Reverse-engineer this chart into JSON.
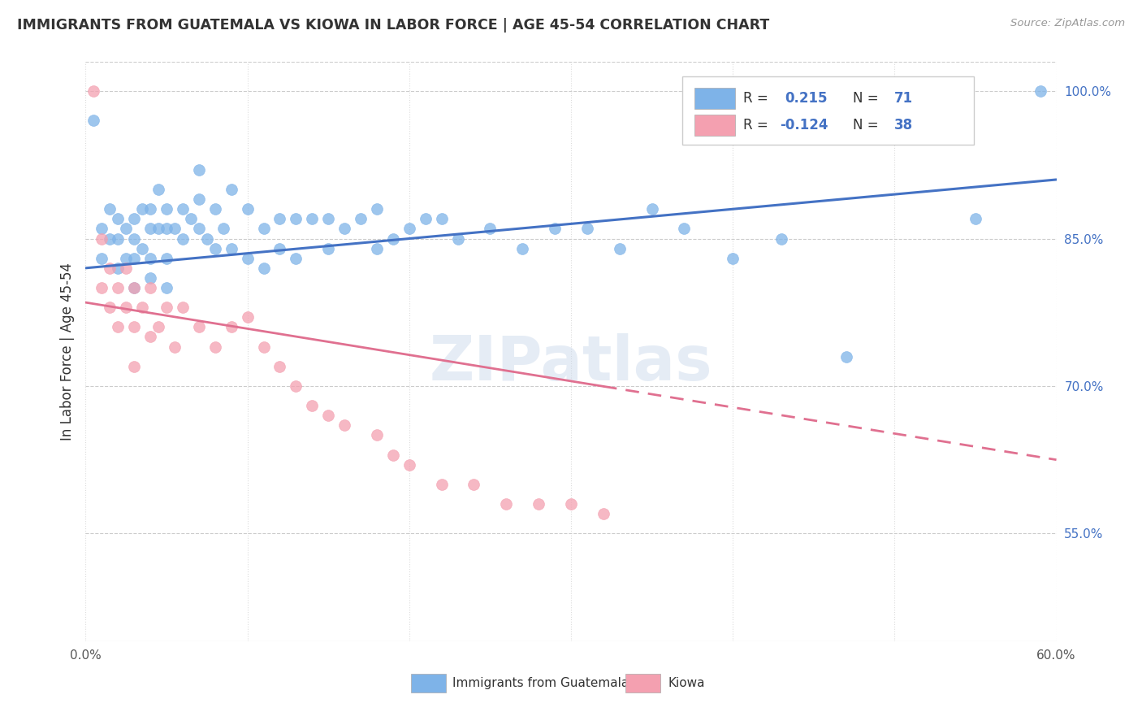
{
  "title": "IMMIGRANTS FROM GUATEMALA VS KIOWA IN LABOR FORCE | AGE 45-54 CORRELATION CHART",
  "source": "Source: ZipAtlas.com",
  "ylabel": "In Labor Force | Age 45-54",
  "x_min": 0.0,
  "x_max": 0.6,
  "y_min": 0.44,
  "y_max": 1.03,
  "x_tick_positions": [
    0.0,
    0.1,
    0.2,
    0.3,
    0.4,
    0.5,
    0.6
  ],
  "x_tick_labels": [
    "0.0%",
    "",
    "",
    "",
    "",
    "",
    "60.0%"
  ],
  "y_ticks_right": [
    0.55,
    0.7,
    0.85,
    1.0
  ],
  "y_tick_labels_right": [
    "55.0%",
    "70.0%",
    "85.0%",
    "100.0%"
  ],
  "R1": 0.215,
  "N1": 71,
  "R2": -0.124,
  "N2": 38,
  "blue_color": "#7EB3E8",
  "pink_color": "#F4A0B0",
  "line_blue": "#4472C4",
  "line_pink": "#E07090",
  "watermark": "ZIPatlas",
  "blue_scatter_x": [
    0.005,
    0.01,
    0.01,
    0.015,
    0.015,
    0.02,
    0.02,
    0.02,
    0.025,
    0.025,
    0.03,
    0.03,
    0.03,
    0.03,
    0.035,
    0.035,
    0.04,
    0.04,
    0.04,
    0.04,
    0.045,
    0.045,
    0.05,
    0.05,
    0.05,
    0.05,
    0.055,
    0.06,
    0.06,
    0.065,
    0.07,
    0.07,
    0.07,
    0.075,
    0.08,
    0.08,
    0.085,
    0.09,
    0.09,
    0.1,
    0.1,
    0.11,
    0.11,
    0.12,
    0.12,
    0.13,
    0.13,
    0.14,
    0.15,
    0.15,
    0.16,
    0.17,
    0.18,
    0.18,
    0.19,
    0.2,
    0.21,
    0.22,
    0.23,
    0.25,
    0.27,
    0.29,
    0.31,
    0.33,
    0.35,
    0.37,
    0.4,
    0.43,
    0.47,
    0.55,
    0.59
  ],
  "blue_scatter_y": [
    0.97,
    0.86,
    0.83,
    0.88,
    0.85,
    0.87,
    0.85,
    0.82,
    0.86,
    0.83,
    0.87,
    0.85,
    0.83,
    0.8,
    0.88,
    0.84,
    0.88,
    0.86,
    0.83,
    0.81,
    0.9,
    0.86,
    0.88,
    0.86,
    0.83,
    0.8,
    0.86,
    0.88,
    0.85,
    0.87,
    0.92,
    0.89,
    0.86,
    0.85,
    0.88,
    0.84,
    0.86,
    0.9,
    0.84,
    0.88,
    0.83,
    0.86,
    0.82,
    0.87,
    0.84,
    0.87,
    0.83,
    0.87,
    0.87,
    0.84,
    0.86,
    0.87,
    0.88,
    0.84,
    0.85,
    0.86,
    0.87,
    0.87,
    0.85,
    0.86,
    0.84,
    0.86,
    0.86,
    0.84,
    0.88,
    0.86,
    0.83,
    0.85,
    0.73,
    0.87,
    1.0
  ],
  "pink_scatter_x": [
    0.005,
    0.01,
    0.01,
    0.015,
    0.015,
    0.02,
    0.02,
    0.025,
    0.025,
    0.03,
    0.03,
    0.03,
    0.035,
    0.04,
    0.04,
    0.045,
    0.05,
    0.055,
    0.06,
    0.07,
    0.08,
    0.09,
    0.1,
    0.11,
    0.12,
    0.13,
    0.14,
    0.15,
    0.16,
    0.18,
    0.19,
    0.2,
    0.22,
    0.24,
    0.26,
    0.28,
    0.3,
    0.32
  ],
  "pink_scatter_y": [
    1.0,
    0.85,
    0.8,
    0.82,
    0.78,
    0.8,
    0.76,
    0.82,
    0.78,
    0.8,
    0.76,
    0.72,
    0.78,
    0.8,
    0.75,
    0.76,
    0.78,
    0.74,
    0.78,
    0.76,
    0.74,
    0.76,
    0.77,
    0.74,
    0.72,
    0.7,
    0.68,
    0.67,
    0.66,
    0.65,
    0.63,
    0.62,
    0.6,
    0.6,
    0.58,
    0.58,
    0.58,
    0.57
  ]
}
